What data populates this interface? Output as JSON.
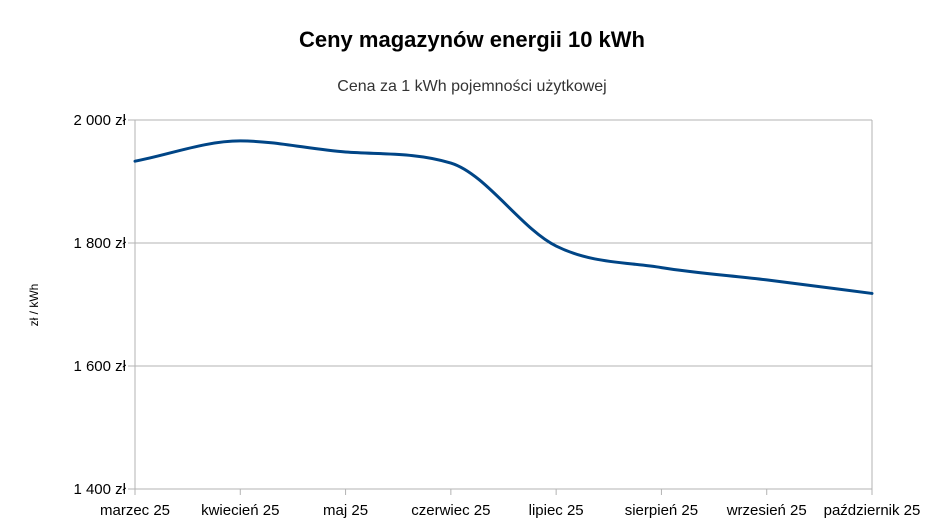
{
  "chart_data": {
    "type": "line",
    "title": "Ceny magazynów energii 10 kWh",
    "subtitle": "Cena za 1 kWh pojemności użytkowej",
    "xlabel": "",
    "ylabel": "zł / kWh",
    "ylim": [
      1400,
      2000
    ],
    "y_ticks": [
      1400,
      1600,
      1800,
      2000
    ],
    "y_tick_labels": [
      "1 400 zł",
      "1 600 zł",
      "1 800 zł",
      "2 000 zł"
    ],
    "categories": [
      "marzec 25",
      "kwiecień 25",
      "maj 25",
      "czerwiec 25",
      "lipiec 25",
      "sierpień 25",
      "wrzesień 25",
      "październik 25"
    ],
    "grid": "horizontal",
    "legend": "none",
    "line_color": "#004586",
    "grid_color": "#b3b3b3",
    "series": [
      {
        "values": [
          1933,
          1966,
          1948,
          1930,
          1795,
          1760,
          1740,
          1718
        ]
      }
    ]
  }
}
